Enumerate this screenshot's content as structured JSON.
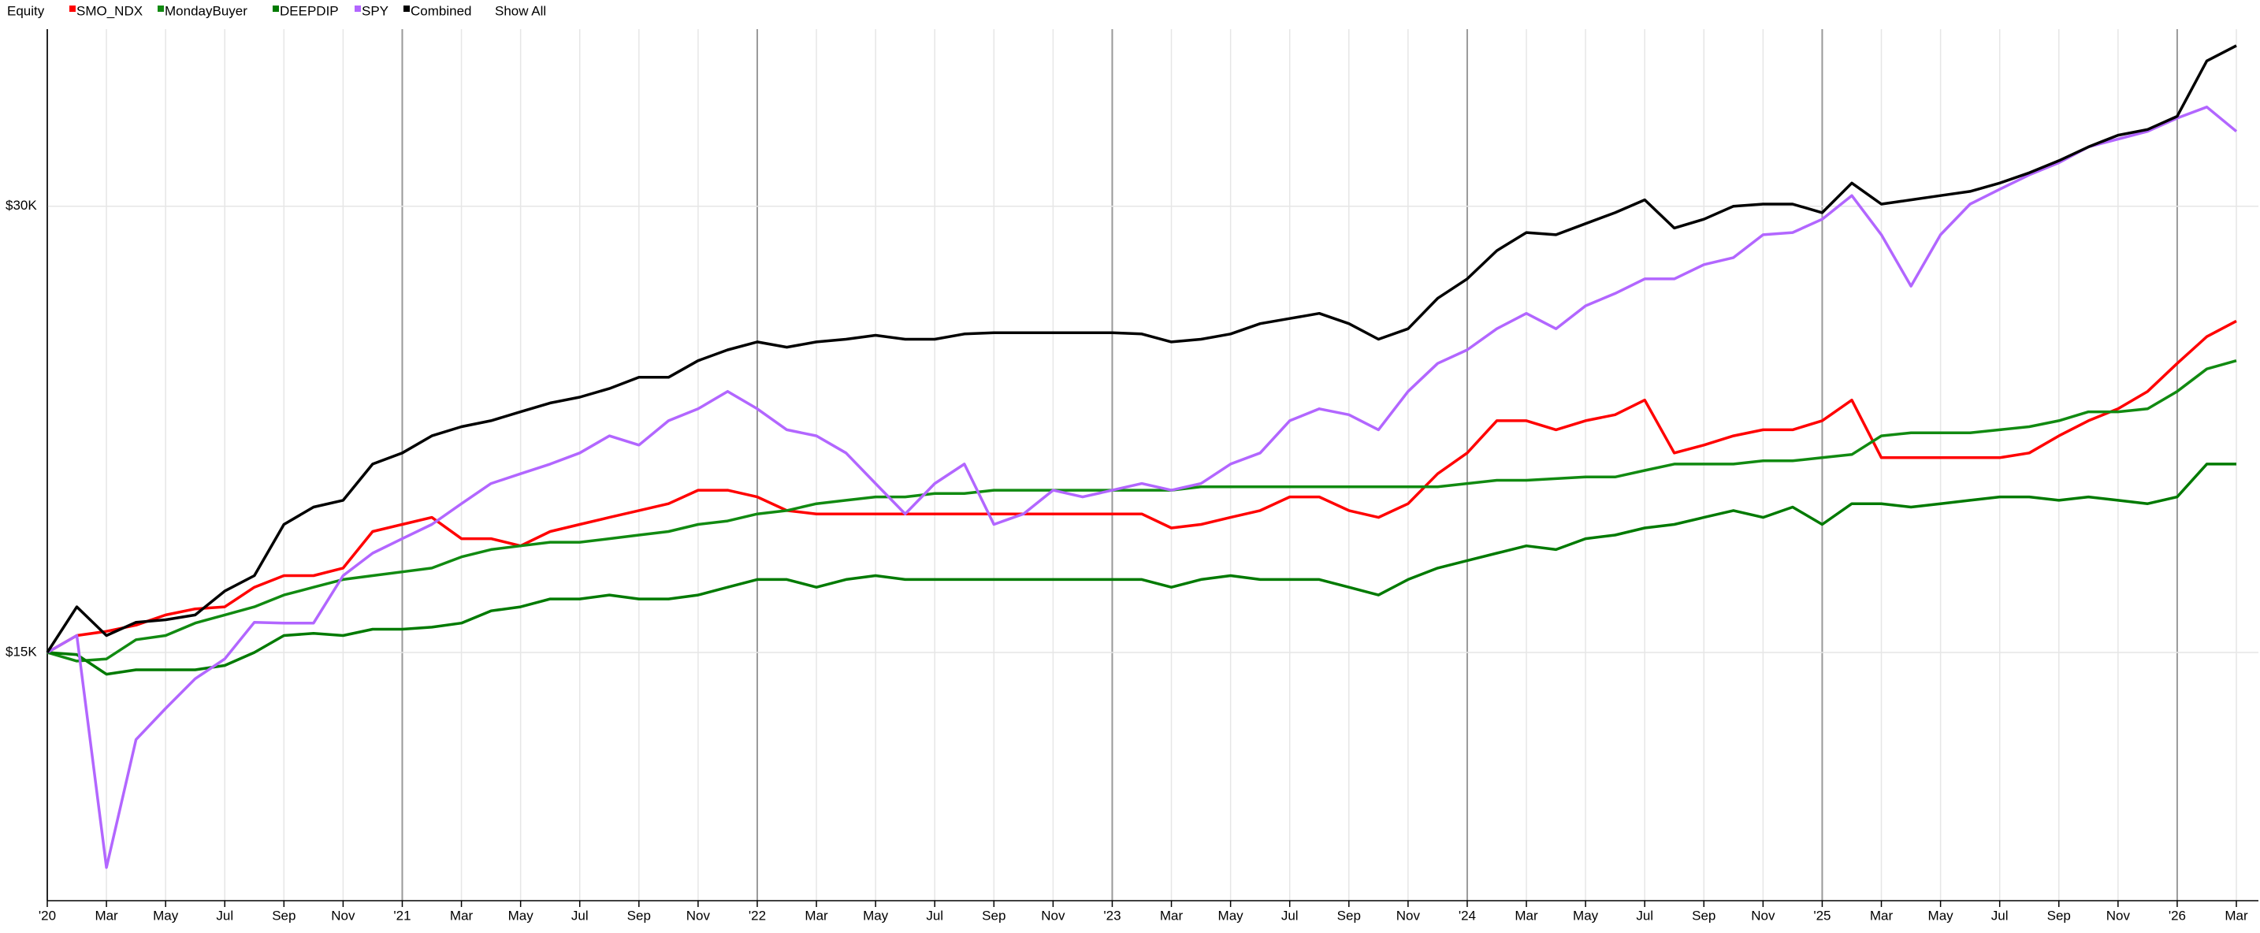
{
  "header": {
    "title": "Equity",
    "show_all": "Show All"
  },
  "chart_data": {
    "type": "line",
    "log_scale": true,
    "grid": true,
    "legend": "top",
    "x": [
      "2020-01",
      "2020-02",
      "2020-03",
      "2020-04",
      "2020-05",
      "2020-06",
      "2020-07",
      "2020-08",
      "2020-09",
      "2020-10",
      "2020-11",
      "2020-12",
      "2021-01",
      "2021-02",
      "2021-03",
      "2021-04",
      "2021-05",
      "2021-06",
      "2021-07",
      "2021-08",
      "2021-09",
      "2021-10",
      "2021-11",
      "2021-12",
      "2022-01",
      "2022-02",
      "2022-03",
      "2022-04",
      "2022-05",
      "2022-06",
      "2022-07",
      "2022-08",
      "2022-09",
      "2022-10",
      "2022-11",
      "2022-12",
      "2023-01",
      "2023-02",
      "2023-03",
      "2023-04",
      "2023-05",
      "2023-06",
      "2023-07",
      "2023-08",
      "2023-09",
      "2023-10",
      "2023-11",
      "2023-12",
      "2024-01",
      "2024-02",
      "2024-03",
      "2024-04",
      "2024-05",
      "2024-06",
      "2024-07",
      "2024-08",
      "2024-09",
      "2024-10",
      "2024-11",
      "2024-12",
      "2025-01",
      "2025-02",
      "2025-03",
      "2025-04",
      "2025-05",
      "2025-06",
      "2025-07",
      "2025-08",
      "2025-09",
      "2025-10",
      "2025-11",
      "2025-12",
      "2026-01",
      "2026-02",
      "2026-03"
    ],
    "xlim": [
      "2020-01",
      "2026-03"
    ],
    "xticks": [
      {
        "value": "2020-01",
        "label": "'20"
      },
      {
        "value": "2020-03",
        "label": "Mar"
      },
      {
        "value": "2020-05",
        "label": "May"
      },
      {
        "value": "2020-07",
        "label": "Jul"
      },
      {
        "value": "2020-09",
        "label": "Sep"
      },
      {
        "value": "2020-11",
        "label": "Nov"
      },
      {
        "value": "2021-01",
        "label": "'21"
      },
      {
        "value": "2021-03",
        "label": "Mar"
      },
      {
        "value": "2021-05",
        "label": "May"
      },
      {
        "value": "2021-07",
        "label": "Jul"
      },
      {
        "value": "2021-09",
        "label": "Sep"
      },
      {
        "value": "2021-11",
        "label": "Nov"
      },
      {
        "value": "2022-01",
        "label": "'22"
      },
      {
        "value": "2022-03",
        "label": "Mar"
      },
      {
        "value": "2022-05",
        "label": "May"
      },
      {
        "value": "2022-07",
        "label": "Jul"
      },
      {
        "value": "2022-09",
        "label": "Sep"
      },
      {
        "value": "2022-11",
        "label": "Nov"
      },
      {
        "value": "2023-01",
        "label": "'23"
      },
      {
        "value": "2023-03",
        "label": "Mar"
      },
      {
        "value": "2023-05",
        "label": "May"
      },
      {
        "value": "2023-07",
        "label": "Jul"
      },
      {
        "value": "2023-09",
        "label": "Sep"
      },
      {
        "value": "2023-11",
        "label": "Nov"
      },
      {
        "value": "2024-01",
        "label": "'24"
      },
      {
        "value": "2024-03",
        "label": "Mar"
      },
      {
        "value": "2024-05",
        "label": "May"
      },
      {
        "value": "2024-07",
        "label": "Jul"
      },
      {
        "value": "2024-09",
        "label": "Sep"
      },
      {
        "value": "2024-11",
        "label": "Nov"
      },
      {
        "value": "2025-01",
        "label": "'25"
      },
      {
        "value": "2025-03",
        "label": "Mar"
      },
      {
        "value": "2025-05",
        "label": "May"
      },
      {
        "value": "2025-07",
        "label": "Jul"
      },
      {
        "value": "2025-09",
        "label": "Sep"
      },
      {
        "value": "2025-11",
        "label": "Nov"
      },
      {
        "value": "2026-01",
        "label": "'26"
      },
      {
        "value": "2026-03",
        "label": "Mar"
      }
    ],
    "ylim": [
      10200,
      39500
    ],
    "yticks": [
      {
        "value": 15000,
        "label": "$15K"
      },
      {
        "value": 30000,
        "label": "$30K"
      }
    ],
    "series": [
      {
        "name": "SMO_NDX",
        "color": "#ff0000",
        "values": [
          15000,
          15400,
          15500,
          15650,
          15900,
          16050,
          16100,
          16600,
          16900,
          16900,
          17100,
          18100,
          18300,
          18500,
          17900,
          17900,
          17700,
          18100,
          18300,
          18500,
          18700,
          18900,
          19300,
          19300,
          19100,
          18700,
          18600,
          18600,
          18600,
          18600,
          18600,
          18600,
          18600,
          18600,
          18600,
          18600,
          18600,
          18600,
          18200,
          18300,
          18500,
          18700,
          19100,
          19100,
          18700,
          18500,
          18900,
          19800,
          20450,
          21500,
          21500,
          21200,
          21500,
          21700,
          22200,
          20450,
          20700,
          21000,
          21200,
          21200,
          21500,
          22200,
          20300,
          20300,
          20300,
          20300,
          20300,
          20450,
          21000,
          21500,
          21900,
          22500,
          23500,
          24500,
          25100
        ]
      },
      {
        "name": "MondayBuyer",
        "color": "#118a11",
        "values": [
          15000,
          14800,
          14850,
          15300,
          15400,
          15700,
          15900,
          16100,
          16400,
          16600,
          16800,
          16900,
          17000,
          17100,
          17400,
          17600,
          17700,
          17800,
          17800,
          17900,
          18000,
          18100,
          18300,
          18400,
          18600,
          18700,
          18900,
          19000,
          19100,
          19100,
          19200,
          19200,
          19300,
          19300,
          19300,
          19300,
          19300,
          19300,
          19300,
          19400,
          19400,
          19400,
          19400,
          19400,
          19400,
          19400,
          19400,
          19400,
          19500,
          19600,
          19600,
          19650,
          19700,
          19700,
          19900,
          20100,
          20100,
          20100,
          20200,
          20200,
          20300,
          20400,
          21000,
          21100,
          21100,
          21100,
          21200,
          21300,
          21500,
          21800,
          21800,
          21900,
          22500,
          23300,
          23600
        ]
      },
      {
        "name": "DEEPDIP",
        "color": "#007a00",
        "values": [
          15000,
          14950,
          14500,
          14600,
          14600,
          14600,
          14700,
          15000,
          15400,
          15450,
          15400,
          15550,
          15550,
          15600,
          15700,
          16000,
          16100,
          16300,
          16300,
          16400,
          16300,
          16300,
          16400,
          16600,
          16800,
          16800,
          16600,
          16800,
          16900,
          16800,
          16800,
          16800,
          16800,
          16800,
          16800,
          16800,
          16800,
          16800,
          16600,
          16800,
          16900,
          16800,
          16800,
          16800,
          16600,
          16400,
          16800,
          17100,
          17300,
          17500,
          17700,
          17600,
          17900,
          18000,
          18200,
          18300,
          18500,
          18700,
          18500,
          18800,
          18300,
          18900,
          18900,
          18800,
          18900,
          19000,
          19100,
          19100,
          19000,
          19100,
          19000,
          18900,
          19100,
          20100,
          20100
        ]
      },
      {
        "name": "SPY",
        "color": "#b266ff",
        "values": [
          15000,
          15400,
          10740,
          13100,
          13750,
          14400,
          14850,
          15720,
          15700,
          15700,
          16900,
          17500,
          17900,
          18300,
          18900,
          19500,
          19800,
          20100,
          20450,
          21000,
          20700,
          21500,
          21900,
          22500,
          21900,
          21200,
          21000,
          20450,
          19500,
          18600,
          19500,
          20100,
          18300,
          18600,
          19300,
          19100,
          19300,
          19500,
          19300,
          19500,
          20100,
          20450,
          21500,
          21900,
          21700,
          21200,
          22500,
          23500,
          24000,
          24800,
          25400,
          24800,
          25700,
          26200,
          26800,
          26800,
          27400,
          27700,
          28700,
          28800,
          29400,
          30500,
          28700,
          26500,
          28700,
          30100,
          30800,
          31500,
          32100,
          32900,
          33300,
          33700,
          34400,
          35000,
          33700
        ]
      },
      {
        "name": "Combined",
        "color": "#000000",
        "values": [
          15000,
          16100,
          15400,
          15720,
          15780,
          15900,
          16500,
          16900,
          18300,
          18800,
          19000,
          20100,
          20450,
          21000,
          21300,
          21500,
          21800,
          22100,
          22300,
          22600,
          23000,
          23000,
          23600,
          24000,
          24300,
          24100,
          24300,
          24400,
          24550,
          24400,
          24400,
          24600,
          24650,
          24650,
          24650,
          24650,
          24650,
          24600,
          24300,
          24400,
          24600,
          25000,
          25200,
          25400,
          25000,
          24400,
          24800,
          26000,
          26800,
          28000,
          28800,
          28700,
          29200,
          29700,
          30300,
          29000,
          29400,
          30000,
          30100,
          30100,
          29700,
          31100,
          30100,
          30300,
          30500,
          30700,
          31100,
          31600,
          32200,
          32900,
          33500,
          33800,
          34500,
          37600,
          38500
        ]
      }
    ]
  }
}
